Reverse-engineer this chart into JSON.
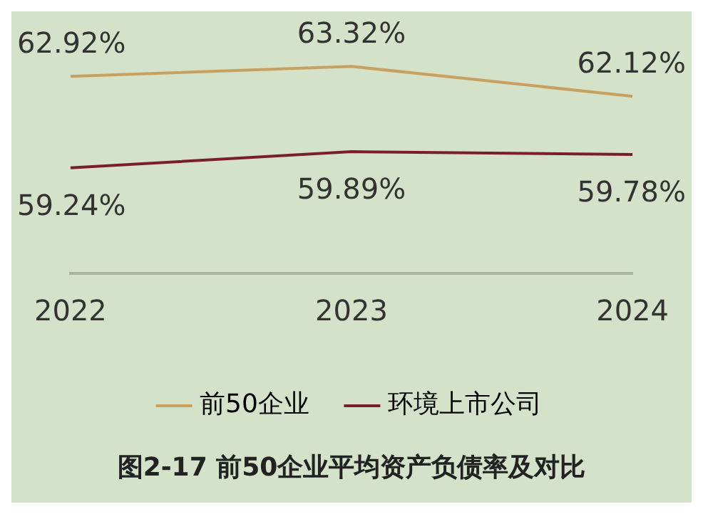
{
  "chart_data": {
    "type": "line",
    "title": "图2-17 前50企业平均资产负债率及对比",
    "categories": [
      "2022",
      "2023",
      "2024"
    ],
    "series": [
      {
        "name": "前50企业",
        "color": "#c8a060",
        "values": [
          62.92,
          63.32,
          62.12
        ],
        "value_labels": [
          "62.92%",
          "63.32%",
          "62.12%"
        ]
      },
      {
        "name": "环境上市公司",
        "color": "#7a1e28",
        "values": [
          59.24,
          59.89,
          59.78
        ],
        "value_labels": [
          "59.24%",
          "59.89%",
          "59.78%"
        ]
      }
    ],
    "legend": "bottom",
    "grid": false,
    "marker": "none",
    "line_style": "solid"
  }
}
